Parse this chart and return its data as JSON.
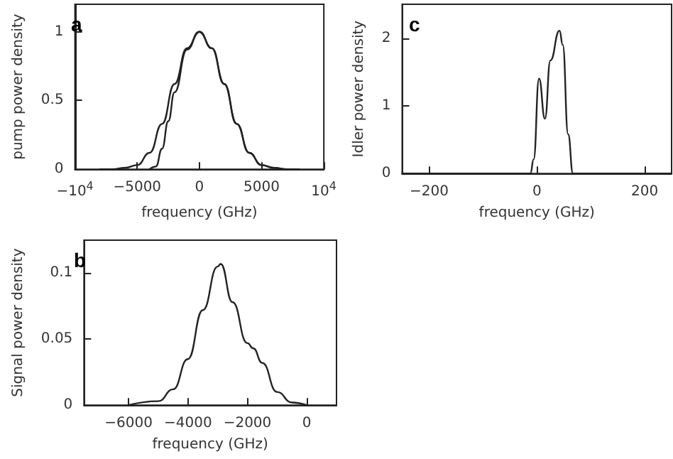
{
  "chart_data": [
    {
      "type": "line",
      "title": "a",
      "xlabel": "frequency (GHz)",
      "ylabel": "pump power density",
      "xlim": [
        -10000,
        10000
      ],
      "xticks": [
        {
          "value": -10000,
          "label": "−10$^{4}$"
        },
        -5000,
        0,
        5000,
        {
          "value": 10000,
          "label": "10$^{4}$"
        }
      ],
      "ylim": [
        0,
        1.2
      ],
      "yticks": [
        0,
        0.5,
        1
      ],
      "marker": "none",
      "line_style": "solid",
      "series": [
        {
          "color": "#222222",
          "x": [
            -8000,
            -7000,
            -6000,
            -5000,
            -4000,
            -3000,
            -2000,
            -1000,
            0,
            1000,
            2000,
            3000,
            4000,
            5000,
            6000,
            7000,
            8000
          ],
          "values": [
            0,
            0,
            0.01,
            0.03,
            0.12,
            0.33,
            0.62,
            0.88,
            1,
            0.88,
            0.62,
            0.33,
            0.12,
            0.03,
            0.01,
            0,
            0
          ]
        },
        {
          "color": "#222222",
          "x": [
            -4000,
            -3500,
            -3000,
            -2500,
            -2000,
            -1000,
            0,
            1000,
            2000,
            3000,
            4000,
            5000,
            6000,
            7000,
            8000
          ],
          "values": [
            0,
            0.02,
            0.15,
            0.35,
            0.56,
            0.87,
            1,
            0.88,
            0.62,
            0.33,
            0.12,
            0.03,
            0.01,
            0,
            0
          ]
        }
      ]
    },
    {
      "type": "line",
      "title": "c",
      "xlabel": "frequency (GHz)",
      "ylabel": "Idler power density",
      "xlim": [
        -250,
        250
      ],
      "xticks": [
        -200,
        0,
        200
      ],
      "ylim": [
        0,
        2.5
      ],
      "yticks": [
        0,
        1,
        2
      ],
      "marker": "none",
      "line_style": "solid",
      "series": [
        {
          "color": "#222222",
          "x": [
            -250,
            -12,
            -6,
            4,
            15,
            25,
            42,
            48,
            58,
            67,
            250
          ],
          "values": [
            0,
            0,
            0.21,
            1.4,
            0.81,
            1.67,
            2.11,
            1.9,
            0.58,
            0,
            0
          ]
        }
      ]
    },
    {
      "type": "line",
      "title": "b",
      "xlabel": "frequency (GHz)",
      "ylabel": "Signal power density",
      "xlim": [
        -7500,
        1000
      ],
      "xticks": [
        -6000,
        -4000,
        -2000,
        0
      ],
      "ylim": [
        0,
        0.125
      ],
      "yticks": [
        0,
        0.05,
        0.1
      ],
      "marker": "none",
      "line_style": "solid",
      "series": [
        {
          "color": "#222222",
          "x": [
            -6000,
            -5000,
            -4500,
            -4000,
            -3500,
            -3000,
            -2900,
            -2500,
            -2000,
            -1800,
            -1500,
            -1000,
            -500,
            0
          ],
          "values": [
            0,
            0.003,
            0.012,
            0.035,
            0.072,
            0.105,
            0.107,
            0.078,
            0.047,
            0.043,
            0.032,
            0.01,
            0.002,
            0
          ]
        }
      ]
    }
  ]
}
